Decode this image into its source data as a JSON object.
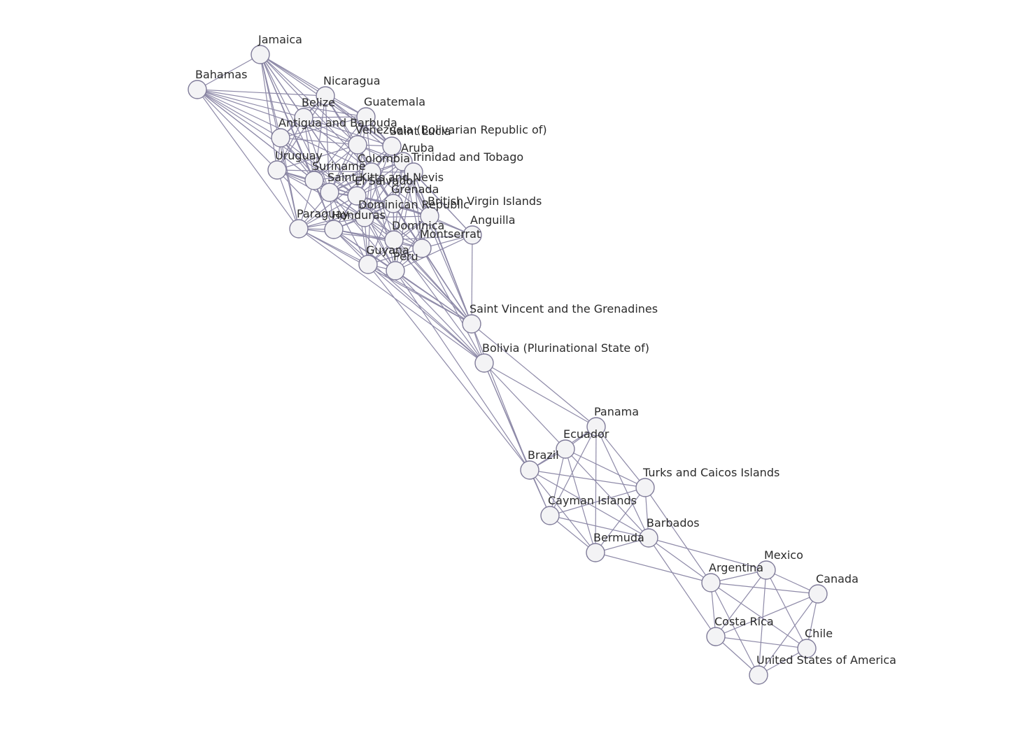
{
  "graph": {
    "nodes": [
      {
        "id": "jamaica",
        "label": "Jamaica"
      },
      {
        "id": "bahamas",
        "label": "Bahamas"
      },
      {
        "id": "nicaragua",
        "label": "Nicaragua"
      },
      {
        "id": "belize",
        "label": "Belize"
      },
      {
        "id": "guatemala",
        "label": "Guatemala"
      },
      {
        "id": "antigua",
        "label": "Antigua and Barbuda"
      },
      {
        "id": "venezuela",
        "label": "Venezuela (Bolivarian Republic of)"
      },
      {
        "id": "saint_lucia",
        "label": "Saint Lucia"
      },
      {
        "id": "aruba",
        "label": "Aruba"
      },
      {
        "id": "uruguay",
        "label": "Uruguay"
      },
      {
        "id": "colombia",
        "label": "Colombia"
      },
      {
        "id": "trinidad",
        "label": "Trinidad and Tobago"
      },
      {
        "id": "suriname",
        "label": "Suriname"
      },
      {
        "id": "skn",
        "label": "Saint Kitts and Nevis"
      },
      {
        "id": "el_salvador",
        "label": "El Salvador"
      },
      {
        "id": "grenada",
        "label": "Grenada"
      },
      {
        "id": "dominican_rep",
        "label": "Dominican Republic"
      },
      {
        "id": "bvi",
        "label": "British Virgin Islands"
      },
      {
        "id": "paraguay",
        "label": "Paraguay"
      },
      {
        "id": "honduras",
        "label": "Honduras"
      },
      {
        "id": "anguilla",
        "label": "Anguilla"
      },
      {
        "id": "dominica",
        "label": "Dominica"
      },
      {
        "id": "montserrat",
        "label": "Montserrat"
      },
      {
        "id": "guyana",
        "label": "Guyana"
      },
      {
        "id": "peru",
        "label": "Peru"
      },
      {
        "id": "svg",
        "label": "Saint Vincent and the Grenadines"
      },
      {
        "id": "bolivia",
        "label": "Bolivia (Plurinational State of)"
      },
      {
        "id": "panama",
        "label": "Panama"
      },
      {
        "id": "ecuador",
        "label": "Ecuador"
      },
      {
        "id": "brazil",
        "label": "Brazil"
      },
      {
        "id": "turks",
        "label": "Turks and Caicos Islands"
      },
      {
        "id": "cayman",
        "label": "Cayman Islands"
      },
      {
        "id": "barbados",
        "label": "Barbados"
      },
      {
        "id": "bermuda",
        "label": "Bermuda"
      },
      {
        "id": "mexico",
        "label": "Mexico"
      },
      {
        "id": "argentina",
        "label": "Argentina"
      },
      {
        "id": "canada",
        "label": "Canada"
      },
      {
        "id": "costa_rica",
        "label": "Costa Rica"
      },
      {
        "id": "chile",
        "label": "Chile"
      },
      {
        "id": "usa",
        "label": "United States of America"
      }
    ],
    "colors": {
      "edge": "#8e8aa8",
      "node_fill": "#f3f3f5",
      "node_stroke": "#7f7b99",
      "label": "#2b2b2b"
    }
  }
}
